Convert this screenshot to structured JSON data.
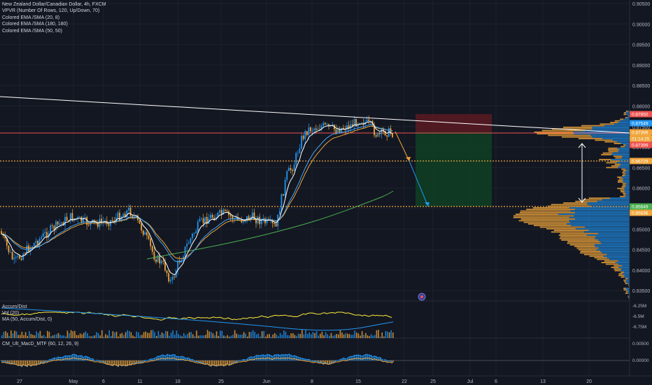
{
  "legend": {
    "symbol": "New Zealand Dollar/Canadian Dollar, 4h, FXCM",
    "vpvr": "VPVR (Number Of Rows, 120, Up/Down, 70)",
    "ema1": "Colored EMA /SMA (20, 8)",
    "ema2": "Colored EMA /SMA (180, 180)",
    "ema3": "Colored EMA /SMA (50, 50)"
  },
  "panes": {
    "accum": {
      "name": "Accum/Dist",
      "vol": "Vol (20)",
      "ma": "MA (50, Accum/Dist, 0)"
    },
    "macd": {
      "name": "CM_Ult_MacD_MTF (60, 12, 26, 9)"
    }
  },
  "price_axis": {
    "ticks": [
      "0.90500",
      "0.90000",
      "0.89500",
      "0.89000",
      "0.88500",
      "0.88000",
      "0.87500",
      "0.87000",
      "0.86500",
      "0.86000",
      "0.85500",
      "0.85000",
      "0.84500",
      "0.84000",
      "0.83500"
    ],
    "labels": [
      {
        "text": "0.87850",
        "color": "#ef5350"
      },
      {
        "text": "0.87549",
        "color": "#2196f3"
      },
      {
        "text": "0.87399",
        "color": "#f0a53a"
      },
      {
        "text": "01:14:25",
        "color": "#f0a53a"
      },
      {
        "text": "0.87399",
        "color": "#ef5350"
      },
      {
        "text": "0.86729",
        "color": "#f0a53a"
      },
      {
        "text": "0.85649",
        "color": "#4caf50"
      },
      {
        "text": "0.85636",
        "color": "#f0a53a"
      }
    ]
  },
  "accum_axis": {
    "ticks": [
      "-6.25M",
      "-6.5M",
      "-6.75M"
    ]
  },
  "macd_axis": {
    "ticks": [
      "0.00500",
      "0.00000"
    ]
  },
  "time_axis": {
    "ticks": [
      "27",
      "May",
      "6",
      "11",
      "18",
      "25",
      "Jun",
      "8",
      "15",
      "22",
      "25",
      "Jul",
      "6",
      "13",
      "20"
    ]
  },
  "colors": {
    "background": "#131722",
    "bull_candle": "#2196f3",
    "bear_candle": "#f0a53a",
    "ema_fast": "#ffffff",
    "ema_blue": "#42a5f5",
    "ema_orange": "#f0a53a",
    "ema_green": "#4caf50",
    "sl_zone": "#ef5350",
    "tp_zone": "#26a69a"
  }
}
